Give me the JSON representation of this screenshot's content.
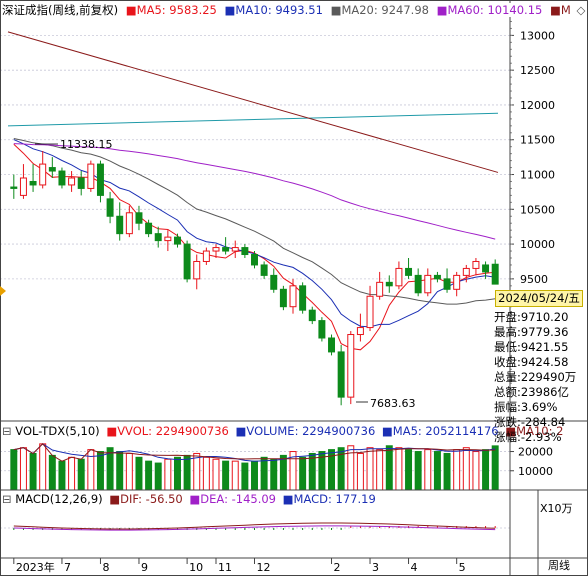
{
  "colors": {
    "up": "#e8141b",
    "down": "#0d8a1b",
    "ma5": "#e8141b",
    "ma10": "#1b2fb4",
    "ma20": "#5a5a5a",
    "ma60": "#a020c8",
    "ma120": "#1f9aa8",
    "ma250": "#8b1a1a",
    "grid": "#c8c8d8",
    "vol_ma5": "#1b2fb4",
    "vol_ma10": "#8b1a1a",
    "macd_dif": "#8b1a1a",
    "macd_dea": "#a020c8"
  },
  "header": {
    "title": "深证成指(周线,前复权)",
    "ma5": "MA5: 9583.25",
    "ma10": "MA10: 9493.51",
    "ma20": "MA20: 9247.98",
    "ma60": "MA60: 10140.15",
    "ma_more": "M"
  },
  "volume_header": {
    "name": "VOL-TDX(5,10)",
    "vvol": "VVOL: 2294900736",
    "volume": "VOLUME: 2294900736",
    "ma5": "MA5: 2052114176",
    "ma10": "MA10: 2"
  },
  "macd_header": {
    "name": "MACD(12,26,9)",
    "dif": "DIF: -56.50",
    "dea": "DEA: -145.09",
    "macd": "MACD: 177.19"
  },
  "price_labels": {
    "high": "11338.15",
    "low": "7683.63"
  },
  "info_panel": {
    "date": "2024/05/24/五",
    "open": "开盘:9710.20",
    "high": "最高:9779.36",
    "low": "最低:9421.55",
    "close": "收盘:9424.58",
    "volume": "总量:229490万",
    "amount": "总额:23986亿",
    "amplitude": "振幅:3.69%",
    "change": "涨跌:-284.84",
    "change_pct": "涨幅:-2.93%"
  },
  "volume_unit": "X10万",
  "period_label": "周线",
  "chart_data": {
    "type": "candlestick",
    "title": "深证成指(周线,前复权)",
    "y_axis_ticks": [
      13000,
      12500,
      12000,
      11500,
      11000,
      10500,
      10000,
      9500
    ],
    "ylim": [
      7500,
      13250
    ],
    "x_labels": [
      {
        "label": "2023年",
        "i": 0
      },
      {
        "label": "7",
        "i": 5
      },
      {
        "label": "8",
        "i": 9
      },
      {
        "label": "9",
        "i": 13
      },
      {
        "label": "10",
        "i": 18
      },
      {
        "label": "11",
        "i": 21
      },
      {
        "label": "12",
        "i": 25
      },
      {
        "label": "2",
        "i": 33
      },
      {
        "label": "3",
        "i": 37
      },
      {
        "label": "4",
        "i": 41
      },
      {
        "label": "5",
        "i": 46
      }
    ],
    "candles": [
      {
        "o": 10820,
        "h": 11000,
        "l": 10650,
        "c": 10800
      },
      {
        "o": 10700,
        "h": 11150,
        "l": 10650,
        "c": 10950
      },
      {
        "o": 10900,
        "h": 11150,
        "l": 10750,
        "c": 10850
      },
      {
        "o": 10850,
        "h": 11338,
        "l": 10800,
        "c": 11150
      },
      {
        "o": 11100,
        "h": 11250,
        "l": 10950,
        "c": 11050
      },
      {
        "o": 11050,
        "h": 11100,
        "l": 10800,
        "c": 10850
      },
      {
        "o": 10850,
        "h": 11050,
        "l": 10750,
        "c": 10950
      },
      {
        "o": 10950,
        "h": 11050,
        "l": 10700,
        "c": 10800
      },
      {
        "o": 10800,
        "h": 11200,
        "l": 10750,
        "c": 11150
      },
      {
        "o": 11150,
        "h": 11200,
        "l": 10600,
        "c": 10700
      },
      {
        "o": 10650,
        "h": 10750,
        "l": 10300,
        "c": 10400
      },
      {
        "o": 10400,
        "h": 10600,
        "l": 10050,
        "c": 10150
      },
      {
        "o": 10150,
        "h": 10550,
        "l": 10100,
        "c": 10450
      },
      {
        "o": 10450,
        "h": 10550,
        "l": 10200,
        "c": 10300
      },
      {
        "o": 10300,
        "h": 10350,
        "l": 10100,
        "c": 10150
      },
      {
        "o": 10150,
        "h": 10250,
        "l": 9950,
        "c": 10050
      },
      {
        "o": 10050,
        "h": 10200,
        "l": 9900,
        "c": 10100
      },
      {
        "o": 10100,
        "h": 10150,
        "l": 9950,
        "c": 10000
      },
      {
        "o": 10000,
        "h": 10050,
        "l": 9450,
        "c": 9500
      },
      {
        "o": 9500,
        "h": 9850,
        "l": 9350,
        "c": 9750
      },
      {
        "o": 9750,
        "h": 9950,
        "l": 9700,
        "c": 9900
      },
      {
        "o": 9900,
        "h": 10000,
        "l": 9800,
        "c": 9950
      },
      {
        "o": 9950,
        "h": 10100,
        "l": 9850,
        "c": 9900
      },
      {
        "o": 9900,
        "h": 10050,
        "l": 9800,
        "c": 9950
      },
      {
        "o": 9950,
        "h": 10000,
        "l": 9800,
        "c": 9850
      },
      {
        "o": 9850,
        "h": 9900,
        "l": 9650,
        "c": 9700
      },
      {
        "o": 9700,
        "h": 9750,
        "l": 9500,
        "c": 9550
      },
      {
        "o": 9550,
        "h": 9650,
        "l": 9300,
        "c": 9350
      },
      {
        "o": 9350,
        "h": 9400,
        "l": 9050,
        "c": 9100
      },
      {
        "o": 9100,
        "h": 9500,
        "l": 9000,
        "c": 9400
      },
      {
        "o": 9400,
        "h": 9450,
        "l": 9000,
        "c": 9050
      },
      {
        "o": 9050,
        "h": 9100,
        "l": 8850,
        "c": 8900
      },
      {
        "o": 8900,
        "h": 8950,
        "l": 8600,
        "c": 8650
      },
      {
        "o": 8650,
        "h": 8700,
        "l": 8400,
        "c": 8450
      },
      {
        "o": 8450,
        "h": 8550,
        "l": 7683,
        "c": 7800
      },
      {
        "o": 7800,
        "h": 8750,
        "l": 7700,
        "c": 8700
      },
      {
        "o": 8700,
        "h": 9000,
        "l": 8600,
        "c": 8800
      },
      {
        "o": 8800,
        "h": 9400,
        "l": 8750,
        "c": 9250
      },
      {
        "o": 9250,
        "h": 9600,
        "l": 9200,
        "c": 9450
      },
      {
        "o": 9450,
        "h": 9550,
        "l": 9300,
        "c": 9400
      },
      {
        "o": 9400,
        "h": 9750,
        "l": 9350,
        "c": 9650
      },
      {
        "o": 9650,
        "h": 9800,
        "l": 9500,
        "c": 9550
      },
      {
        "o": 9550,
        "h": 9650,
        "l": 9250,
        "c": 9300
      },
      {
        "o": 9300,
        "h": 9650,
        "l": 9250,
        "c": 9550
      },
      {
        "o": 9550,
        "h": 9600,
        "l": 9450,
        "c": 9500
      },
      {
        "o": 9500,
        "h": 9650,
        "l": 9300,
        "c": 9350
      },
      {
        "o": 9350,
        "h": 9600,
        "l": 9250,
        "c": 9550
      },
      {
        "o": 9550,
        "h": 9700,
        "l": 9450,
        "c": 9650
      },
      {
        "o": 9650,
        "h": 9800,
        "l": 9550,
        "c": 9750
      },
      {
        "o": 9700,
        "h": 9750,
        "l": 9500,
        "c": 9600
      },
      {
        "o": 9710.2,
        "h": 9779.36,
        "l": 9421.55,
        "c": 9424.58
      }
    ],
    "volume": {
      "unit": "X10万",
      "y_axis_ticks": [
        20000,
        10000
      ],
      "ylim": [
        0,
        26000
      ],
      "values": [
        21000,
        22000,
        19000,
        24000,
        18000,
        15000,
        17000,
        16000,
        21000,
        20000,
        22000,
        20000,
        19000,
        17000,
        15000,
        14000,
        16000,
        17000,
        18000,
        19000,
        17000,
        16000,
        15000,
        15000,
        14000,
        15000,
        17000,
        16000,
        18000,
        20000,
        17000,
        19000,
        20000,
        21000,
        22000,
        23000,
        19000,
        22000,
        21000,
        23000,
        22000,
        21000,
        20000,
        21000,
        20000,
        19000,
        21000,
        22000,
        20000,
        21000,
        22949
      ]
    },
    "macd": {
      "dif": "-56.50",
      "dea": "-145.09",
      "macd": "177.19"
    }
  }
}
